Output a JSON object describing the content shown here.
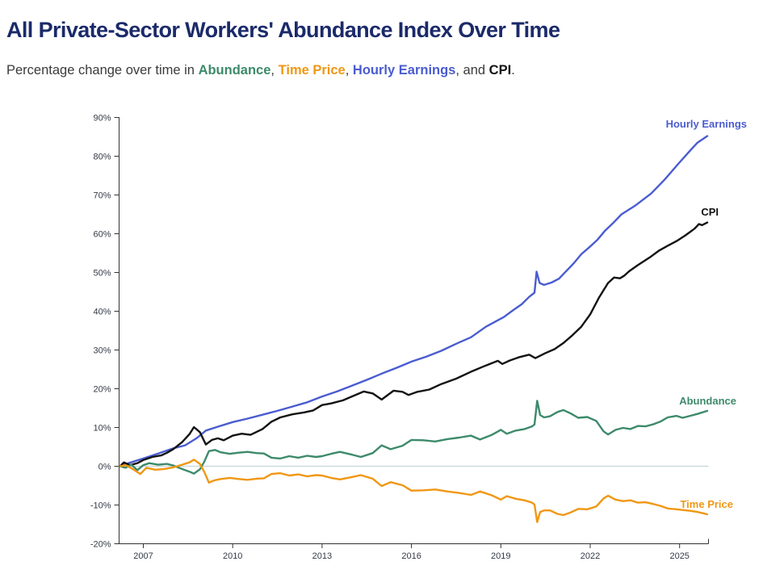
{
  "header": {
    "title": "All Private-Sector Workers' Abundance Index Over Time",
    "subtitle": {
      "prefix": "Percentage change over time in ",
      "abundance": "Abundance",
      "sep1": ", ",
      "time_price": "Time Price",
      "sep2": ", ",
      "hourly_earnings": "Hourly Earnings",
      "sep3": ", and ",
      "cpi": "CPI",
      "suffix": "."
    }
  },
  "colors": {
    "title": "#1b2a6a",
    "text": "#3a3a3a",
    "abundance": "#3d8a6b",
    "time_price": "#f09713",
    "hourly_earnings": "#4a5cd0",
    "cpi": "#121212",
    "zero_line": "#ccd9e0",
    "axis": "#333333",
    "tick_label": "#343a46"
  },
  "chart_data": {
    "type": "line",
    "title": "All Private-Sector Workers' Abundance Index Over Time",
    "subtitle": "Percentage change over time in Abundance, Time Price, Hourly Earnings, and CPI.",
    "xlabel": "",
    "ylabel": "Percentage change",
    "x_axis": {
      "ticks": [
        2007,
        2010,
        2013,
        2016,
        2019,
        2022,
        2025
      ],
      "range": [
        2006.2,
        2025.96
      ]
    },
    "y_axis": {
      "ticks": [
        -20,
        -10,
        0,
        10,
        20,
        30,
        40,
        50,
        60,
        70,
        80,
        90
      ],
      "range": [
        -20,
        90
      ],
      "unit": "%"
    },
    "grid": "zero-line-only",
    "legend_position": "inline-end-of-line-labels",
    "series": [
      {
        "name": "Hourly Earnings",
        "key": "hourly_earnings",
        "color": "#4a5cd0",
        "points": [
          [
            2006.22,
            0
          ],
          [
            2006.5,
            0.8
          ],
          [
            2007.0,
            2.0
          ],
          [
            2007.5,
            3.3
          ],
          [
            2008.0,
            4.6
          ],
          [
            2008.4,
            5.4
          ],
          [
            2008.8,
            7.3
          ],
          [
            2009.1,
            9.2
          ],
          [
            2009.5,
            10.2
          ],
          [
            2010.0,
            11.4
          ],
          [
            2010.5,
            12.3
          ],
          [
            2011.0,
            13.3
          ],
          [
            2011.5,
            14.3
          ],
          [
            2012.0,
            15.4
          ],
          [
            2012.5,
            16.5
          ],
          [
            2013.0,
            18.0
          ],
          [
            2013.5,
            19.3
          ],
          [
            2014.0,
            20.8
          ],
          [
            2014.5,
            22.3
          ],
          [
            2015.0,
            23.9
          ],
          [
            2015.5,
            25.4
          ],
          [
            2016.0,
            27.0
          ],
          [
            2016.5,
            28.3
          ],
          [
            2017.0,
            29.8
          ],
          [
            2017.5,
            31.6
          ],
          [
            2018.0,
            33.3
          ],
          [
            2018.5,
            36.0
          ],
          [
            2019.1,
            38.5
          ],
          [
            2019.4,
            40.2
          ],
          [
            2019.7,
            41.8
          ],
          [
            2019.95,
            43.7
          ],
          [
            2020.13,
            44.8
          ],
          [
            2020.2,
            50.2
          ],
          [
            2020.3,
            47.3
          ],
          [
            2020.45,
            46.8
          ],
          [
            2020.7,
            47.4
          ],
          [
            2020.95,
            48.4
          ],
          [
            2021.2,
            50.4
          ],
          [
            2021.45,
            52.4
          ],
          [
            2021.7,
            54.7
          ],
          [
            2022.0,
            56.7
          ],
          [
            2022.25,
            58.5
          ],
          [
            2022.5,
            60.8
          ],
          [
            2022.8,
            63.0
          ],
          [
            2023.05,
            65.0
          ],
          [
            2023.5,
            67.2
          ],
          [
            2024.05,
            70.4
          ],
          [
            2024.5,
            74.0
          ],
          [
            2024.95,
            78.0
          ],
          [
            2025.3,
            81.0
          ],
          [
            2025.6,
            83.5
          ],
          [
            2025.93,
            85.2
          ]
        ]
      },
      {
        "name": "CPI",
        "key": "cpi",
        "color": "#121212",
        "points": [
          [
            2006.22,
            0
          ],
          [
            2006.35,
            1.0
          ],
          [
            2006.55,
            0.3
          ],
          [
            2006.8,
            0.8
          ],
          [
            2007.0,
            1.6
          ],
          [
            2007.3,
            2.4
          ],
          [
            2007.6,
            2.8
          ],
          [
            2007.8,
            3.5
          ],
          [
            2008.0,
            4.4
          ],
          [
            2008.3,
            6.2
          ],
          [
            2008.55,
            8.3
          ],
          [
            2008.7,
            10.1
          ],
          [
            2008.9,
            8.8
          ],
          [
            2009.1,
            5.6
          ],
          [
            2009.3,
            6.8
          ],
          [
            2009.5,
            7.2
          ],
          [
            2009.7,
            6.7
          ],
          [
            2010.0,
            7.9
          ],
          [
            2010.3,
            8.4
          ],
          [
            2010.6,
            8.1
          ],
          [
            2011.0,
            9.6
          ],
          [
            2011.3,
            11.5
          ],
          [
            2011.6,
            12.6
          ],
          [
            2012.0,
            13.4
          ],
          [
            2012.4,
            13.9
          ],
          [
            2012.7,
            14.4
          ],
          [
            2013.0,
            15.8
          ],
          [
            2013.3,
            16.2
          ],
          [
            2013.7,
            17.0
          ],
          [
            2014.0,
            18.0
          ],
          [
            2014.4,
            19.3
          ],
          [
            2014.7,
            18.8
          ],
          [
            2015.0,
            17.2
          ],
          [
            2015.4,
            19.5
          ],
          [
            2015.7,
            19.2
          ],
          [
            2015.9,
            18.4
          ],
          [
            2016.2,
            19.2
          ],
          [
            2016.6,
            19.8
          ],
          [
            2017.0,
            21.2
          ],
          [
            2017.5,
            22.6
          ],
          [
            2018.0,
            24.4
          ],
          [
            2018.5,
            26.0
          ],
          [
            2018.9,
            27.2
          ],
          [
            2019.05,
            26.4
          ],
          [
            2019.3,
            27.3
          ],
          [
            2019.6,
            28.1
          ],
          [
            2019.95,
            28.8
          ],
          [
            2020.16,
            27.9
          ],
          [
            2020.5,
            29.2
          ],
          [
            2020.8,
            30.2
          ],
          [
            2021.1,
            31.8
          ],
          [
            2021.4,
            33.8
          ],
          [
            2021.7,
            36.0
          ],
          [
            2022.0,
            39.2
          ],
          [
            2022.3,
            43.6
          ],
          [
            2022.6,
            47.3
          ],
          [
            2022.8,
            48.7
          ],
          [
            2023.0,
            48.5
          ],
          [
            2023.15,
            49.2
          ],
          [
            2023.3,
            50.3
          ],
          [
            2023.6,
            51.9
          ],
          [
            2024.0,
            53.9
          ],
          [
            2024.3,
            55.6
          ],
          [
            2024.6,
            56.9
          ],
          [
            2024.9,
            58.1
          ],
          [
            2025.2,
            59.6
          ],
          [
            2025.5,
            61.3
          ],
          [
            2025.65,
            62.5
          ],
          [
            2025.75,
            62.2
          ],
          [
            2025.93,
            62.9
          ]
        ]
      },
      {
        "name": "Abundance",
        "key": "abundance",
        "color": "#3d8a6b",
        "points": [
          [
            2006.22,
            0
          ],
          [
            2006.4,
            -0.4
          ],
          [
            2006.6,
            0.4
          ],
          [
            2006.8,
            -1.0
          ],
          [
            2007.0,
            0.3
          ],
          [
            2007.2,
            0.8
          ],
          [
            2007.5,
            0.4
          ],
          [
            2007.8,
            0.6
          ],
          [
            2008.0,
            0.2
          ],
          [
            2008.3,
            -0.7
          ],
          [
            2008.55,
            -1.4
          ],
          [
            2008.7,
            -1.9
          ],
          [
            2008.9,
            -0.8
          ],
          [
            2009.05,
            1.2
          ],
          [
            2009.2,
            3.9
          ],
          [
            2009.4,
            4.2
          ],
          [
            2009.6,
            3.6
          ],
          [
            2009.9,
            3.2
          ],
          [
            2010.2,
            3.5
          ],
          [
            2010.5,
            3.7
          ],
          [
            2010.8,
            3.4
          ],
          [
            2011.05,
            3.3
          ],
          [
            2011.3,
            2.2
          ],
          [
            2011.6,
            2.0
          ],
          [
            2011.9,
            2.6
          ],
          [
            2012.2,
            2.2
          ],
          [
            2012.5,
            2.7
          ],
          [
            2012.8,
            2.4
          ],
          [
            2013.0,
            2.6
          ],
          [
            2013.3,
            3.2
          ],
          [
            2013.6,
            3.7
          ],
          [
            2014.0,
            3.0
          ],
          [
            2014.3,
            2.4
          ],
          [
            2014.7,
            3.4
          ],
          [
            2015.0,
            5.4
          ],
          [
            2015.3,
            4.4
          ],
          [
            2015.7,
            5.3
          ],
          [
            2016.0,
            6.8
          ],
          [
            2016.4,
            6.7
          ],
          [
            2016.8,
            6.4
          ],
          [
            2017.2,
            7.0
          ],
          [
            2017.6,
            7.4
          ],
          [
            2018.0,
            7.9
          ],
          [
            2018.3,
            6.9
          ],
          [
            2018.7,
            8.1
          ],
          [
            2019.0,
            9.4
          ],
          [
            2019.2,
            8.4
          ],
          [
            2019.5,
            9.2
          ],
          [
            2019.8,
            9.6
          ],
          [
            2020.05,
            10.3
          ],
          [
            2020.13,
            10.8
          ],
          [
            2020.22,
            16.9
          ],
          [
            2020.32,
            13.2
          ],
          [
            2020.45,
            12.6
          ],
          [
            2020.65,
            12.9
          ],
          [
            2020.9,
            14.0
          ],
          [
            2021.1,
            14.5
          ],
          [
            2021.35,
            13.6
          ],
          [
            2021.6,
            12.5
          ],
          [
            2021.9,
            12.7
          ],
          [
            2022.2,
            11.7
          ],
          [
            2022.45,
            9.0
          ],
          [
            2022.6,
            8.2
          ],
          [
            2022.85,
            9.4
          ],
          [
            2023.1,
            9.9
          ],
          [
            2023.35,
            9.6
          ],
          [
            2023.6,
            10.4
          ],
          [
            2023.85,
            10.3
          ],
          [
            2024.1,
            10.8
          ],
          [
            2024.35,
            11.5
          ],
          [
            2024.6,
            12.6
          ],
          [
            2024.9,
            13.0
          ],
          [
            2025.1,
            12.5
          ],
          [
            2025.35,
            13.0
          ],
          [
            2025.6,
            13.5
          ],
          [
            2025.93,
            14.3
          ]
        ]
      },
      {
        "name": "Time Price",
        "key": "time_price",
        "color": "#f09713",
        "points": [
          [
            2006.22,
            0
          ],
          [
            2006.4,
            0.3
          ],
          [
            2006.6,
            -0.5
          ],
          [
            2006.9,
            -2.0
          ],
          [
            2007.1,
            -0.4
          ],
          [
            2007.4,
            -0.9
          ],
          [
            2007.7,
            -0.7
          ],
          [
            2008.0,
            -0.3
          ],
          [
            2008.3,
            0.4
          ],
          [
            2008.55,
            1.0
          ],
          [
            2008.7,
            1.7
          ],
          [
            2008.9,
            0.6
          ],
          [
            2009.05,
            -1.5
          ],
          [
            2009.2,
            -4.2
          ],
          [
            2009.4,
            -3.6
          ],
          [
            2009.6,
            -3.3
          ],
          [
            2009.9,
            -3.0
          ],
          [
            2010.2,
            -3.3
          ],
          [
            2010.5,
            -3.5
          ],
          [
            2010.8,
            -3.2
          ],
          [
            2011.05,
            -3.1
          ],
          [
            2011.3,
            -2.0
          ],
          [
            2011.6,
            -1.8
          ],
          [
            2011.9,
            -2.4
          ],
          [
            2012.2,
            -2.1
          ],
          [
            2012.5,
            -2.6
          ],
          [
            2012.8,
            -2.3
          ],
          [
            2013.0,
            -2.4
          ],
          [
            2013.3,
            -3.0
          ],
          [
            2013.6,
            -3.4
          ],
          [
            2014.0,
            -2.8
          ],
          [
            2014.3,
            -2.3
          ],
          [
            2014.7,
            -3.2
          ],
          [
            2015.0,
            -5.1
          ],
          [
            2015.3,
            -4.1
          ],
          [
            2015.7,
            -4.9
          ],
          [
            2016.0,
            -6.3
          ],
          [
            2016.4,
            -6.2
          ],
          [
            2016.8,
            -6.0
          ],
          [
            2017.2,
            -6.5
          ],
          [
            2017.6,
            -6.9
          ],
          [
            2018.0,
            -7.4
          ],
          [
            2018.3,
            -6.5
          ],
          [
            2018.7,
            -7.5
          ],
          [
            2019.0,
            -8.6
          ],
          [
            2019.2,
            -7.7
          ],
          [
            2019.5,
            -8.4
          ],
          [
            2019.8,
            -8.8
          ],
          [
            2020.05,
            -9.4
          ],
          [
            2020.13,
            -9.9
          ],
          [
            2020.22,
            -14.4
          ],
          [
            2020.32,
            -11.8
          ],
          [
            2020.45,
            -11.4
          ],
          [
            2020.65,
            -11.4
          ],
          [
            2020.9,
            -12.3
          ],
          [
            2021.1,
            -12.6
          ],
          [
            2021.35,
            -11.9
          ],
          [
            2021.6,
            -11.0
          ],
          [
            2021.9,
            -11.1
          ],
          [
            2022.2,
            -10.4
          ],
          [
            2022.45,
            -8.3
          ],
          [
            2022.6,
            -7.6
          ],
          [
            2022.85,
            -8.6
          ],
          [
            2023.1,
            -9.0
          ],
          [
            2023.35,
            -8.8
          ],
          [
            2023.6,
            -9.4
          ],
          [
            2023.85,
            -9.3
          ],
          [
            2024.1,
            -9.7
          ],
          [
            2024.35,
            -10.2
          ],
          [
            2024.6,
            -10.9
          ],
          [
            2024.9,
            -11.1
          ],
          [
            2025.1,
            -11.3
          ],
          [
            2025.35,
            -11.5
          ],
          [
            2025.6,
            -11.8
          ],
          [
            2025.93,
            -12.4
          ]
        ]
      }
    ]
  }
}
